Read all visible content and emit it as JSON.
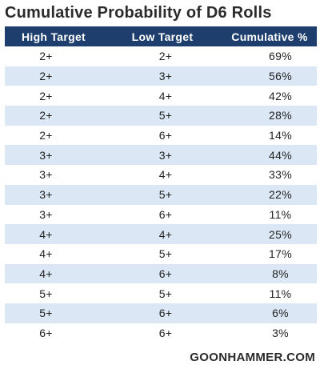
{
  "title": "Cumulative Probability of D6 Rolls",
  "headers": [
    "High Target",
    "Low Target",
    "Cumulative %"
  ],
  "rows": [
    [
      "2+",
      "2+",
      "69%"
    ],
    [
      "2+",
      "3+",
      "56%"
    ],
    [
      "2+",
      "4+",
      "42%"
    ],
    [
      "2+",
      "5+",
      "28%"
    ],
    [
      "2+",
      "6+",
      "14%"
    ],
    [
      "3+",
      "3+",
      "44%"
    ],
    [
      "3+",
      "4+",
      "33%"
    ],
    [
      "3+",
      "5+",
      "22%"
    ],
    [
      "3+",
      "6+",
      "11%"
    ],
    [
      "4+",
      "4+",
      "25%"
    ],
    [
      "4+",
      "5+",
      "17%"
    ],
    [
      "4+",
      "6+",
      "8%"
    ],
    [
      "5+",
      "5+",
      "11%"
    ],
    [
      "5+",
      "6+",
      "6%"
    ],
    [
      "6+",
      "6+",
      "3%"
    ]
  ],
  "footer": "GOONHAMMER.COM",
  "colors": {
    "header_bg": "#1e3f6d",
    "alt_row_bg": "#dbe7f4",
    "text": "#222222"
  }
}
